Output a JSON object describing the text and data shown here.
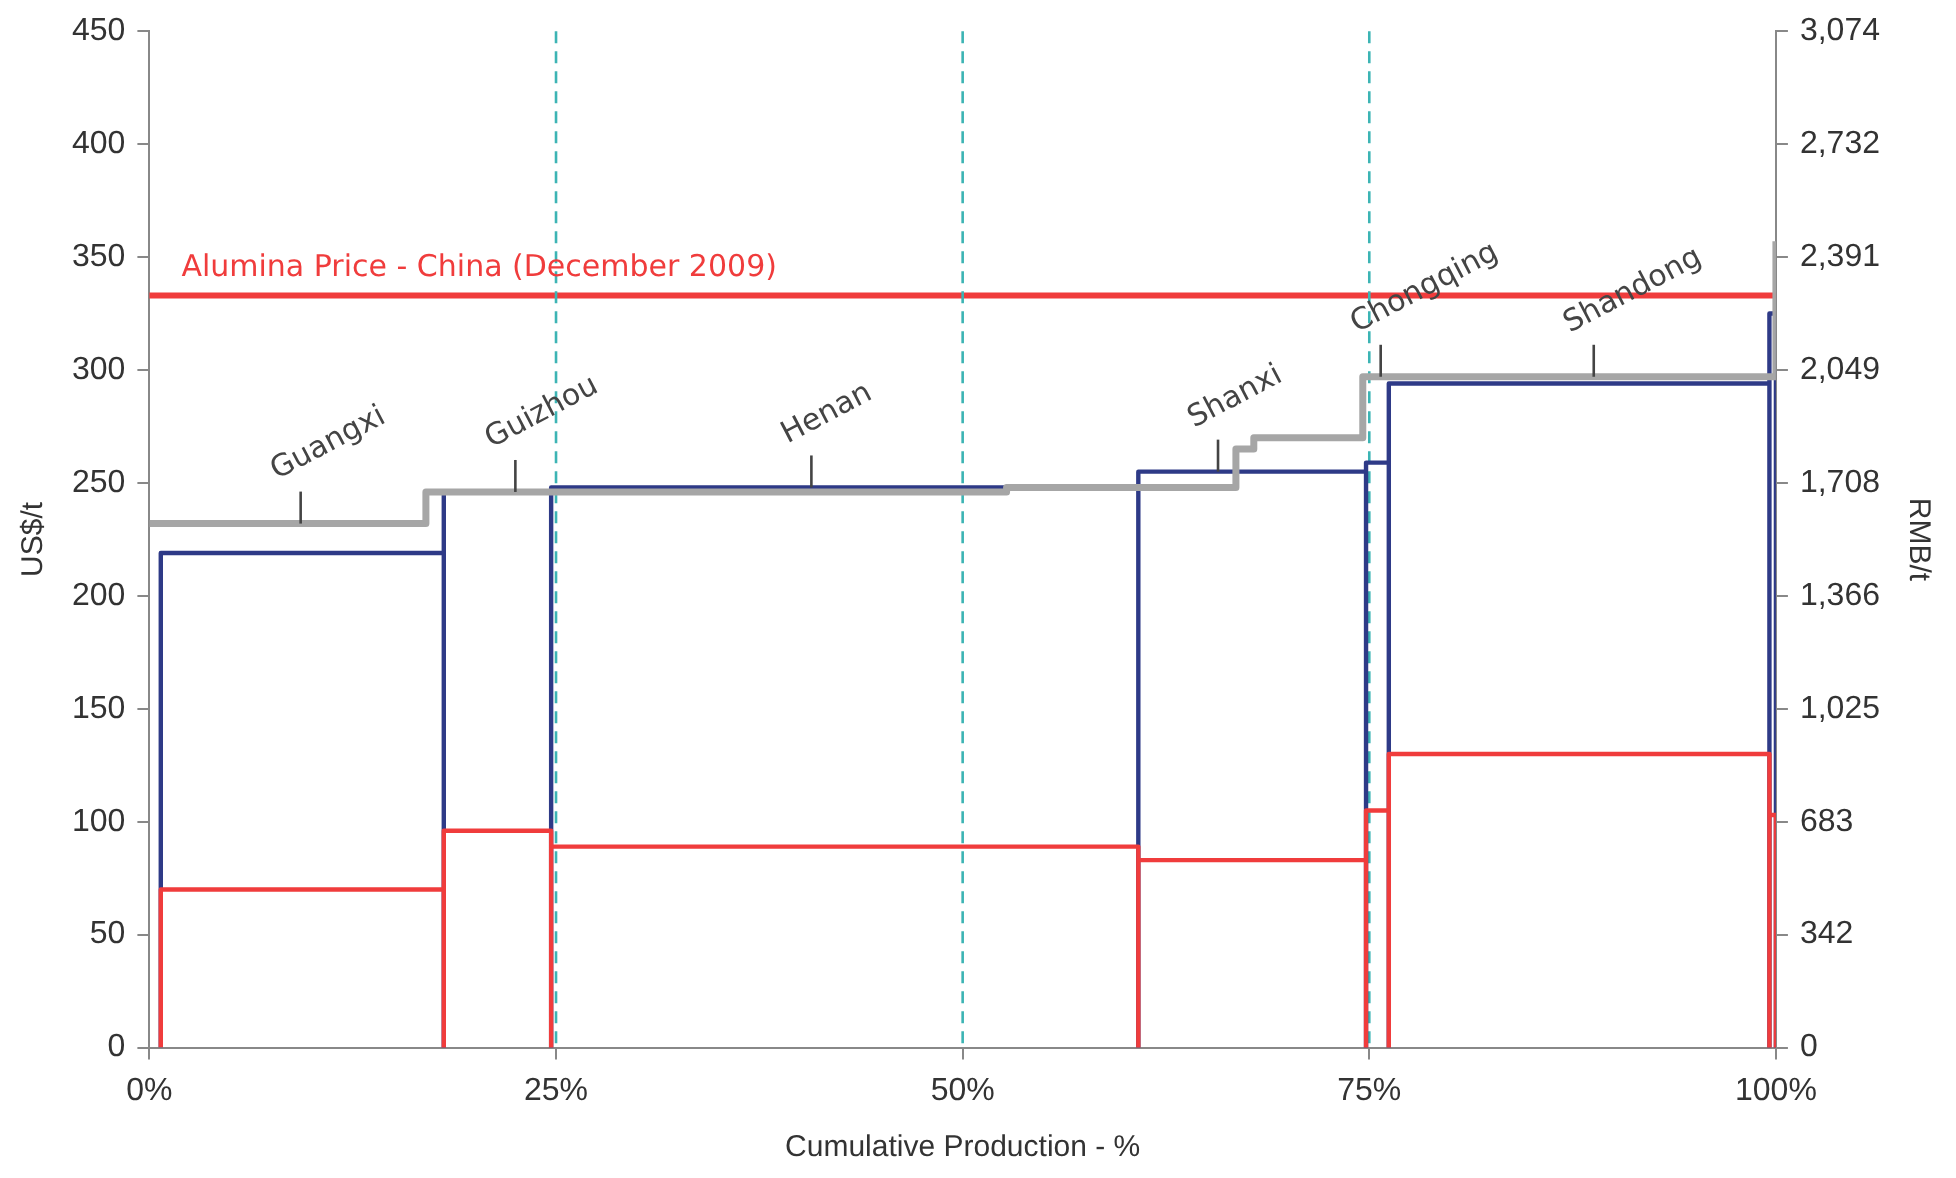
{
  "chart_data": {
    "type": "histogram",
    "xlabel": "Cumulative Production - %",
    "ylabel": "US$/t",
    "y2label": "RMB/t",
    "bins": [
      0.7,
      18.1,
      24.7,
      60.8,
      74.8,
      76.2,
      99.6,
      100
    ],
    "series": [
      {
        "color": "#2e3a87",
        "values": [
          219,
          246,
          248,
          255,
          259,
          294,
          325
        ]
      },
      {
        "color": "#f03c3c",
        "values": [
          70,
          96,
          89,
          83,
          105,
          130,
          103
        ]
      },
      {
        "type": "step",
        "color": "#a6a6a6",
        "x": [
          0,
          17,
          52.7,
          66.8,
          67.9,
          74.6,
          100
        ],
        "values": [
          232,
          246,
          248,
          265,
          270,
          297,
          357
        ]
      }
    ],
    "xlim": [
      0,
      100
    ],
    "xticks": [
      {
        "value": 0,
        "label": "0%"
      },
      {
        "value": 25,
        "label": "25%"
      },
      {
        "value": 50,
        "label": "50%"
      },
      {
        "value": 75,
        "label": "75%"
      },
      {
        "value": 100,
        "label": "100%"
      }
    ],
    "ylim": [
      0,
      450
    ],
    "yticks": [
      0,
      50,
      100,
      150,
      200,
      250,
      300,
      350,
      400,
      450
    ],
    "y2lim": [
      0,
      3074
    ],
    "y2ticks": [
      {
        "value": 0,
        "label": "0"
      },
      {
        "value": 342,
        "label": "342"
      },
      {
        "value": 683,
        "label": "683"
      },
      {
        "value": 1025,
        "label": "1,025"
      },
      {
        "value": 1366,
        "label": "1,366"
      },
      {
        "value": 1708,
        "label": "1,708"
      },
      {
        "value": 2049,
        "label": "2,049"
      },
      {
        "value": 2391,
        "label": "2,391"
      },
      {
        "value": 2732,
        "label": "2,732"
      },
      {
        "value": 3074,
        "label": "3,074"
      }
    ],
    "ref_lines": [
      {
        "axis": "y",
        "value": 333,
        "label": "Alumina Price - China (December 2009)",
        "color": "#f03c3c",
        "line_style": "solid"
      },
      {
        "axis": "x",
        "value": 25,
        "color": "#3cb4b4",
        "line_style": "dashed"
      },
      {
        "axis": "x",
        "value": 50,
        "color": "#3cb4b4",
        "line_style": "dashed"
      },
      {
        "axis": "x",
        "value": 75,
        "color": "#3cb4b4",
        "line_style": "dashed"
      }
    ],
    "annotations": [
      {
        "text": "Guangxi",
        "x": 9.3,
        "y": 232
      },
      {
        "text": "Guizhou",
        "x": 22.5,
        "y": 246
      },
      {
        "text": "Henan",
        "x": 40.7,
        "y": 248
      },
      {
        "text": "Shanxi",
        "x": 65.7,
        "y": 255
      },
      {
        "text": "Chongqing",
        "x": 75.7,
        "y": 297
      },
      {
        "text": "Shandong",
        "x": 88.8,
        "y": 297
      }
    ],
    "grid": false,
    "legend": false
  }
}
